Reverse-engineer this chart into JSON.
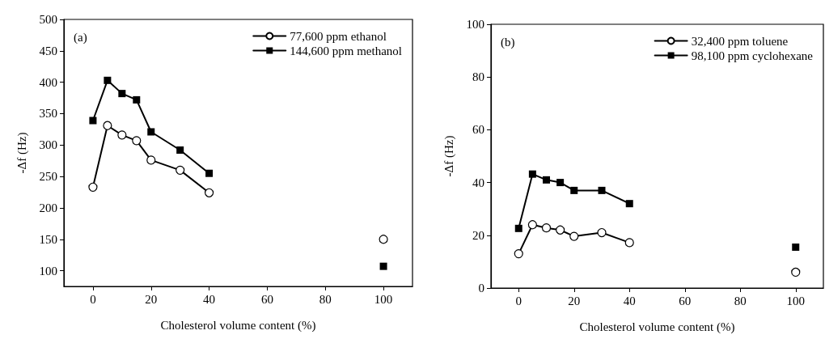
{
  "chart_data": [
    {
      "type": "line",
      "annotations": [
        "(a)"
      ],
      "xlabel": "Cholesterol volume content (%)",
      "ylabel": "-Δf (Hz)",
      "xlim": [
        -10,
        110
      ],
      "xticks": [
        0,
        20,
        40,
        60,
        80,
        100
      ],
      "ylim": [
        75,
        500
      ],
      "yticks": [
        100,
        150,
        200,
        250,
        300,
        350,
        400,
        450,
        500
      ],
      "grid": false,
      "legend": "top right",
      "line_style": "solid",
      "series": [
        {
          "name": "77,600 ppm ethanol",
          "color": "#000000",
          "marker": "circle",
          "x": [
            0,
            5,
            10,
            15,
            20,
            30,
            40
          ],
          "values": [
            233,
            331,
            316,
            307,
            276,
            260,
            224
          ]
        },
        {
          "name": "144,600 ppm methanol",
          "color": "#000000",
          "marker": "square",
          "x": [
            0,
            5,
            10,
            15,
            20,
            30,
            40
          ],
          "values": [
            339,
            403,
            382,
            372,
            321,
            292,
            255
          ]
        },
        {
          "type": "scatter",
          "color": "#000000",
          "marker": "circle",
          "x": [
            100
          ],
          "values": [
            150
          ]
        },
        {
          "type": "scatter",
          "color": "#000000",
          "marker": "square",
          "x": [
            100
          ],
          "values": [
            107
          ]
        }
      ]
    },
    {
      "type": "line",
      "annotations": [
        "(b)"
      ],
      "xlabel": "Cholesterol volume content (%)",
      "ylabel": "-Δf (Hz)",
      "xlim": [
        -10,
        110
      ],
      "xticks": [
        0,
        20,
        40,
        60,
        80,
        100
      ],
      "ylim": [
        0,
        100
      ],
      "yticks": [
        0,
        20,
        40,
        60,
        80,
        100
      ],
      "grid": false,
      "legend": "top right",
      "line_style": "solid",
      "series": [
        {
          "name": "32,400 ppm toluene",
          "color": "#000000",
          "marker": "circle",
          "x": [
            0,
            5,
            10,
            15,
            20,
            30,
            40
          ],
          "values": [
            13,
            24,
            22.8,
            22,
            19.6,
            21,
            17.2
          ]
        },
        {
          "name": "98,100 ppm cyclohexane",
          "color": "#000000",
          "marker": "square",
          "x": [
            0,
            5,
            10,
            15,
            20,
            30,
            40
          ],
          "values": [
            22.6,
            43.2,
            41,
            40,
            37,
            37,
            32
          ]
        },
        {
          "type": "scatter",
          "color": "#000000",
          "marker": "circle",
          "x": [
            100
          ],
          "values": [
            6
          ]
        },
        {
          "type": "scatter",
          "color": "#000000",
          "marker": "square",
          "x": [
            100
          ],
          "values": [
            15.5
          ]
        }
      ]
    }
  ]
}
